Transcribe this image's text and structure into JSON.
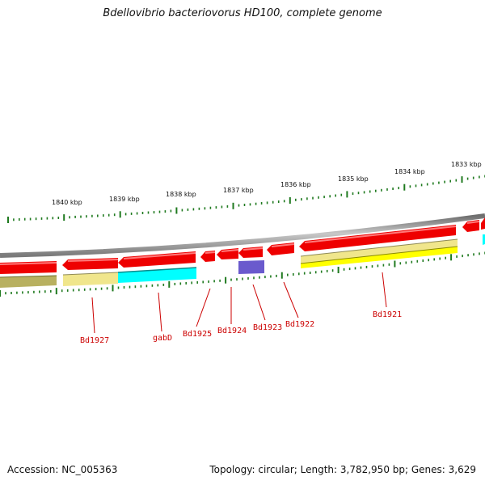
{
  "title": "Bdellovibrio bacteriovorus HD100, complete genome",
  "footer": {
    "accession": "Accession: NC_005363",
    "summary": "Topology: circular; Length: 3,782,950 bp; Genes: 3,629"
  },
  "scale_labels": [
    "1840 kbp",
    "1839 kbp",
    "1838 kbp",
    "1837 kbp",
    "1836 kbp",
    "1835 kbp",
    "1834 kbp",
    "1833 kbp"
  ],
  "gene_labels": [
    "Bd1927",
    "gabD",
    "Bd1925",
    "Bd1924",
    "Bd1923",
    "Bd1922",
    "Bd1921"
  ],
  "colors": {
    "cds": "#ee0000",
    "cds_highlight": "#ff6a6a",
    "cds_shadow": "#b00000",
    "backbone": "#8a8a8a",
    "cog_khaki": "#f0e68c",
    "cog_olive": "#b8b060",
    "cog_cyan": "#00ffff",
    "cog_yellow": "#ffff00",
    "cog_slateblue": "#6a5acd",
    "tick": "#1f7a1f",
    "label_text": "#cc0000"
  }
}
